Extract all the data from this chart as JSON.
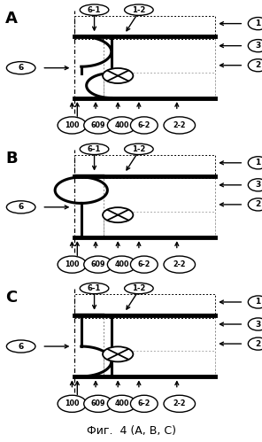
{
  "fig_label": "Фиг.  4 (A, B, C)",
  "panels": [
    "A",
    "B",
    "C"
  ],
  "background": "#ffffff"
}
